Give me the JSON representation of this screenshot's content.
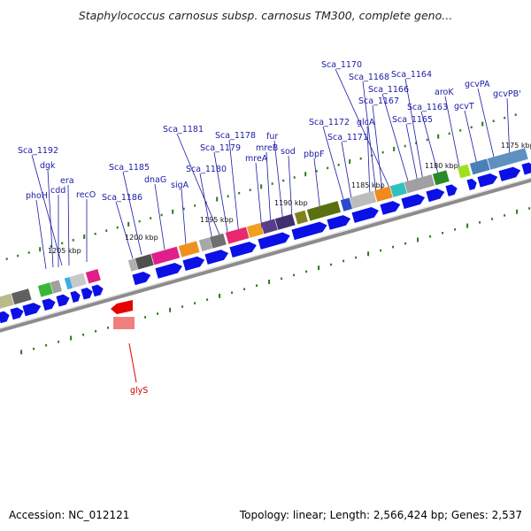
{
  "title": "Staphylococcus carnosus subsp. carnosus TM300, complete geno...",
  "footer": {
    "accession": "Accession: NC_012121",
    "summary": "Topology: linear; Length: 2,566,424 bp; Genes: 2,537"
  },
  "colors": {
    "label": "#1a1aa6",
    "gene_arrow": "#0a10e6",
    "backbone": "#8c8c8c",
    "tick": "#2a7a1a",
    "rrna": "#e60000",
    "label_red": "#cc0000"
  },
  "kbp_labels": [
    "1175 kbp",
    "1180 kbp",
    "1185 kbp",
    "1190 kbp",
    "1195 kbp",
    "1200 kbp",
    "1205 kbp"
  ],
  "gene_labels": [
    {
      "name": "Sca_1192",
      "color": "blue"
    },
    {
      "name": "dgk",
      "color": "blue"
    },
    {
      "name": "era",
      "color": "blue"
    },
    {
      "name": "cdd",
      "color": "blue"
    },
    {
      "name": "phoH",
      "color": "blue"
    },
    {
      "name": "recO",
      "color": "blue"
    },
    {
      "name": "Sca_1185",
      "color": "blue"
    },
    {
      "name": "Sca_1186",
      "color": "blue"
    },
    {
      "name": "dnaG",
      "color": "blue"
    },
    {
      "name": "sigA",
      "color": "blue"
    },
    {
      "name": "Sca_1181",
      "color": "blue"
    },
    {
      "name": "Sca_1180",
      "color": "blue"
    },
    {
      "name": "Sca_1178",
      "color": "blue"
    },
    {
      "name": "Sca_1179",
      "color": "blue"
    },
    {
      "name": "mreA",
      "color": "blue"
    },
    {
      "name": "fur",
      "color": "blue"
    },
    {
      "name": "mreB",
      "color": "blue"
    },
    {
      "name": "sod",
      "color": "blue"
    },
    {
      "name": "pbpF",
      "color": "blue"
    },
    {
      "name": "Sca_1172",
      "color": "blue"
    },
    {
      "name": "Sca_1171",
      "color": "blue"
    },
    {
      "name": "Sca_1170",
      "color": "blue"
    },
    {
      "name": "Sca_1168",
      "color": "blue"
    },
    {
      "name": "Sca_1167",
      "color": "blue"
    },
    {
      "name": "glcA",
      "color": "blue"
    },
    {
      "name": "Sca_1166",
      "color": "blue"
    },
    {
      "name": "Sca_1164",
      "color": "blue"
    },
    {
      "name": "Sca_1165",
      "color": "blue"
    },
    {
      "name": "Sca_1163",
      "color": "blue"
    },
    {
      "name": "aroK",
      "color": "blue"
    },
    {
      "name": "gcvPA",
      "color": "blue"
    },
    {
      "name": "gcvT",
      "color": "blue"
    },
    {
      "name": "gcvPB'",
      "color": "blue"
    },
    {
      "name": "glyS",
      "color": "red"
    }
  ]
}
